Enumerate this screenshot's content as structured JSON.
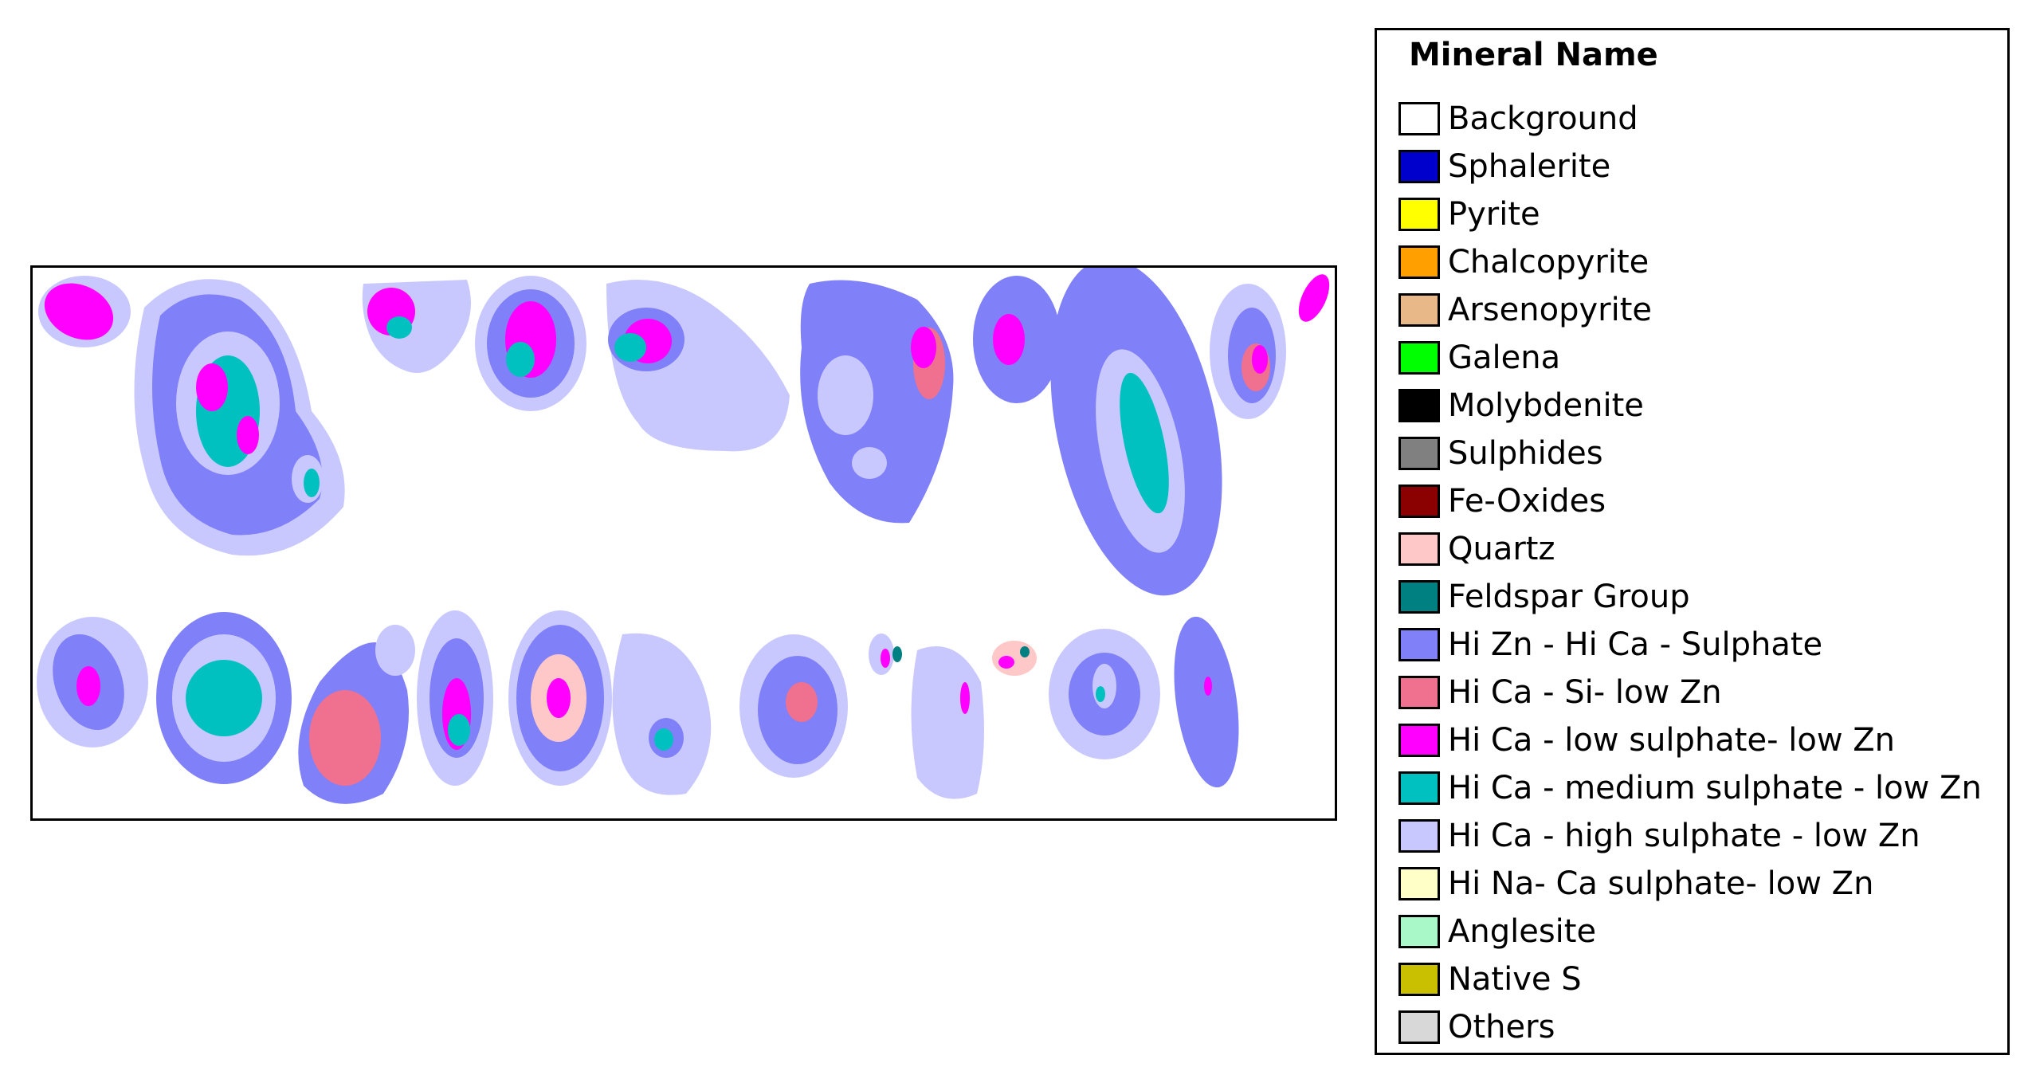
{
  "legend": {
    "title": "Mineral Name",
    "items": [
      {
        "label": "Background",
        "color": "#FFFFFF"
      },
      {
        "label": "Sphalerite",
        "color": "#0000CC"
      },
      {
        "label": "Pyrite",
        "color": "#FFFF00"
      },
      {
        "label": "Chalcopyrite",
        "color": "#FFA000"
      },
      {
        "label": "Arsenopyrite",
        "color": "#E8B888"
      },
      {
        "label": "Galena",
        "color": "#00FF00"
      },
      {
        "label": "Molybdenite",
        "color": "#000000"
      },
      {
        "label": "Sulphides",
        "color": "#808080"
      },
      {
        "label": "Fe-Oxides",
        "color": "#8B0000"
      },
      {
        "label": "Quartz",
        "color": "#FFC8C8"
      },
      {
        "label": "Feldspar Group",
        "color": "#008080"
      },
      {
        "label": "Hi Zn - Hi Ca - Sulphate",
        "color": "#8080F8"
      },
      {
        "label": "Hi Ca - Si- low Zn",
        "color": "#F07090"
      },
      {
        "label": "Hi Ca -  low sulphate- low Zn",
        "color": "#FF00FF"
      },
      {
        "label": "Hi Ca - medium sulphate - low Zn",
        "color": "#00C0C0"
      },
      {
        "label": "Hi Ca - high sulphate - low Zn",
        "color": "#C8C8FF"
      },
      {
        "label": "Hi Na- Ca sulphate- low Zn",
        "color": "#FFFFC8"
      },
      {
        "label": "Anglesite",
        "color": "#A8F8C8"
      },
      {
        "label": "Native S",
        "color": "#C8C000"
      },
      {
        "label": "Others",
        "color": "#D8D8D8"
      }
    ]
  }
}
